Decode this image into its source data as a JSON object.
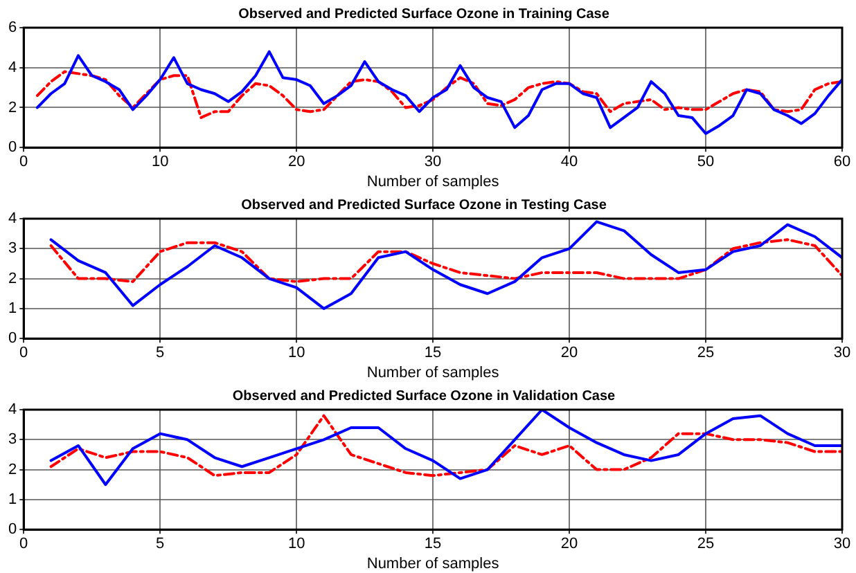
{
  "chart_data": [
    {
      "type": "line",
      "title": "Observed and Predicted Surface Ozone in Training Case",
      "xlabel": "Number of samples",
      "x": [
        1,
        2,
        3,
        4,
        5,
        6,
        7,
        8,
        9,
        10,
        11,
        12,
        13,
        14,
        15,
        16,
        17,
        18,
        19,
        20,
        21,
        22,
        23,
        24,
        25,
        26,
        27,
        28,
        29,
        30,
        31,
        32,
        33,
        34,
        35,
        36,
        37,
        38,
        39,
        40,
        41,
        42,
        43,
        44,
        45,
        46,
        47,
        48,
        49,
        50,
        51,
        52,
        53,
        54,
        55,
        56,
        57,
        58,
        59,
        60
      ],
      "xlim": [
        0,
        60
      ],
      "xticks": [
        0,
        10,
        20,
        30,
        40,
        50,
        60
      ],
      "ylim": [
        0,
        6
      ],
      "yticks": [
        0,
        2,
        4,
        6
      ],
      "grid": true,
      "legend": false,
      "marker": "none",
      "series": [
        {
          "color": "#0000ff",
          "line_style": "solid",
          "values": [
            2.0,
            2.7,
            3.2,
            4.6,
            3.6,
            3.3,
            2.9,
            1.9,
            2.6,
            3.4,
            4.5,
            3.2,
            2.9,
            2.7,
            2.3,
            2.8,
            3.6,
            4.8,
            3.5,
            3.4,
            3.1,
            2.2,
            2.6,
            3.1,
            4.3,
            3.3,
            2.9,
            2.6,
            1.8,
            2.5,
            2.9,
            4.1,
            3.0,
            2.5,
            2.3,
            1.0,
            1.6,
            2.9,
            3.2,
            3.2,
            2.7,
            2.5,
            1.0,
            1.5,
            2.0,
            3.3,
            2.7,
            1.6,
            1.5,
            0.7,
            1.1,
            1.6,
            2.9,
            2.7,
            1.9,
            1.6,
            1.2,
            1.7,
            2.6,
            3.4
          ]
        },
        {
          "color": "#ff0000",
          "line_style": "dashed",
          "values": [
            2.6,
            3.3,
            3.8,
            3.7,
            3.6,
            3.4,
            2.6,
            2.0,
            2.7,
            3.4,
            3.6,
            3.6,
            1.5,
            1.8,
            1.8,
            2.6,
            3.2,
            3.1,
            2.6,
            1.9,
            1.8,
            1.9,
            2.6,
            3.3,
            3.4,
            3.3,
            2.8,
            2.0,
            2.1,
            2.4,
            3.0,
            3.5,
            3.2,
            2.2,
            2.1,
            2.4,
            3.0,
            3.2,
            3.3,
            3.2,
            2.8,
            2.7,
            1.8,
            2.2,
            2.3,
            2.4,
            1.9,
            2.0,
            1.9,
            1.9,
            2.3,
            2.7,
            2.9,
            2.8,
            1.9,
            1.8,
            1.9,
            2.9,
            3.2,
            3.3
          ]
        }
      ]
    },
    {
      "type": "line",
      "title": "Observed and Predicted Surface Ozone in Testing Case",
      "xlabel": "Number of samples",
      "x": [
        1,
        2,
        3,
        4,
        5,
        6,
        7,
        8,
        9,
        10,
        11,
        12,
        13,
        14,
        15,
        16,
        17,
        18,
        19,
        20,
        21,
        22,
        23,
        24,
        25,
        26,
        27,
        28,
        29,
        30
      ],
      "xlim": [
        0,
        30
      ],
      "xticks": [
        0,
        5,
        10,
        15,
        20,
        25,
        30
      ],
      "ylim": [
        0,
        4
      ],
      "yticks": [
        0,
        1,
        2,
        3,
        4
      ],
      "grid": true,
      "legend": false,
      "marker": "none",
      "series": [
        {
          "color": "#0000ff",
          "line_style": "solid",
          "values": [
            3.3,
            2.6,
            2.2,
            1.1,
            1.8,
            2.4,
            3.1,
            2.7,
            2.0,
            1.7,
            1.0,
            1.5,
            2.7,
            2.9,
            2.3,
            1.8,
            1.5,
            1.9,
            2.7,
            3.0,
            3.9,
            3.6,
            2.8,
            2.2,
            2.3,
            2.9,
            3.1,
            3.8,
            3.4,
            2.7
          ]
        },
        {
          "color": "#ff0000",
          "line_style": "dashed",
          "values": [
            3.1,
            2.0,
            2.0,
            1.9,
            2.9,
            3.2,
            3.2,
            2.9,
            2.0,
            1.9,
            2.0,
            2.0,
            2.9,
            2.9,
            2.5,
            2.2,
            2.1,
            2.0,
            2.2,
            2.2,
            2.2,
            2.0,
            2.0,
            2.0,
            2.3,
            3.0,
            3.2,
            3.3,
            3.1,
            2.1
          ]
        }
      ]
    },
    {
      "type": "line",
      "title": "Observed and Predicted Surface Ozone in Validation Case",
      "xlabel": "Number of samples",
      "x": [
        1,
        2,
        3,
        4,
        5,
        6,
        7,
        8,
        9,
        10,
        11,
        12,
        13,
        14,
        15,
        16,
        17,
        18,
        19,
        20,
        21,
        22,
        23,
        24,
        25,
        26,
        27,
        28,
        29,
        30
      ],
      "xlim": [
        0,
        30
      ],
      "xticks": [
        0,
        5,
        10,
        15,
        20,
        25,
        30
      ],
      "ylim": [
        0,
        4
      ],
      "yticks": [
        0,
        1,
        2,
        3,
        4
      ],
      "grid": true,
      "legend": false,
      "marker": "none",
      "series": [
        {
          "color": "#0000ff",
          "line_style": "solid",
          "values": [
            2.3,
            2.8,
            1.5,
            2.7,
            3.2,
            3.0,
            2.4,
            2.1,
            2.4,
            2.7,
            3.0,
            3.4,
            3.4,
            2.7,
            2.3,
            1.7,
            2.0,
            3.0,
            4.0,
            3.4,
            2.9,
            2.5,
            2.3,
            2.5,
            3.2,
            3.7,
            3.8,
            3.2,
            2.8,
            2.8
          ]
        },
        {
          "color": "#ff0000",
          "line_style": "dashed",
          "values": [
            2.1,
            2.7,
            2.4,
            2.6,
            2.6,
            2.4,
            1.8,
            1.9,
            1.9,
            2.5,
            3.8,
            2.5,
            2.2,
            1.9,
            1.8,
            1.9,
            2.0,
            2.8,
            2.5,
            2.8,
            2.0,
            2.0,
            2.4,
            3.2,
            3.2,
            3.0,
            3.0,
            2.9,
            2.6,
            2.6
          ]
        }
      ]
    }
  ]
}
